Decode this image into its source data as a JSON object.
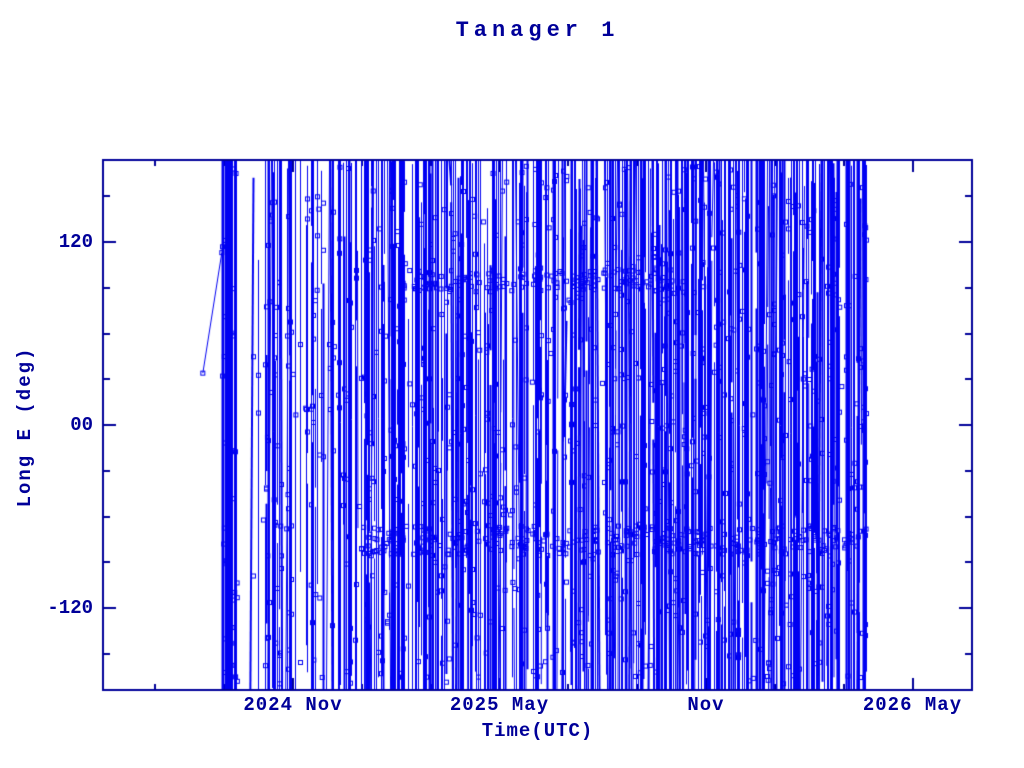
{
  "window": {
    "background": "#ffffff"
  },
  "chart_data": {
    "type": "scatter",
    "title": "Tanager 1",
    "xlabel": "Time(UTC)",
    "ylabel": "Long E (deg)",
    "series_name": "sub-satellite longitude (deg East) vs time, points joined; longitude wraps at ±180 every orbit so daily passes render as dense vertical lines with small open-square markers",
    "xlim_decimal_year": [
      2024.373,
      2026.477
    ],
    "ylim_deg": [
      -173.8,
      173.8
    ],
    "x_major_ticks": [
      {
        "t": 2024.8333,
        "label": "2024 Nov"
      },
      {
        "t": 2025.3333,
        "label": "2025 May"
      },
      {
        "t": 2025.8333,
        "label": "Nov"
      },
      {
        "t": 2026.3333,
        "label": "2026 May"
      }
    ],
    "x_minor_tick_every_months": 2,
    "y_major_ticks": [
      {
        "v": 120,
        "label": "120"
      },
      {
        "v": 0,
        "label": "00"
      },
      {
        "v": -120,
        "label": "-120"
      }
    ],
    "y_minor_tick_every_deg": 30,
    "grid": false,
    "legend": "none",
    "colors": {
      "axis": "#000099",
      "text": "#000099",
      "data": "#0000f2"
    },
    "marker": "open-square-4px",
    "data_start_decimal_year": 2024.615,
    "data_end_decimal_year": 2026.225,
    "initial_segment": {
      "t": [
        2024.615,
        2024.661
      ],
      "lon": [
        34,
        113
      ]
    },
    "start_cluster_t": [
      2024.662,
      2024.695
    ],
    "main_start": 2024.695,
    "pattern": {
      "seed": 7,
      "marker_px": 4,
      "gap_chance": 0.015,
      "densities": [
        {
          "until": 2024.765,
          "p": 0.2
        },
        {
          "until": 2024.95,
          "p": 0.62
        },
        {
          "until": 2025.5,
          "p": 0.72
        },
        {
          "until": 2027.0,
          "p": 0.8
        }
      ],
      "marker_bands": [
        {
          "lon": -76,
          "spread": 20,
          "t0": 2025.0,
          "t1": 2026.225,
          "p": 0.65
        },
        {
          "lon": 95,
          "spread": 14,
          "t0": 2025.1,
          "t1": 2025.78,
          "p": 0.5
        }
      ]
    }
  }
}
